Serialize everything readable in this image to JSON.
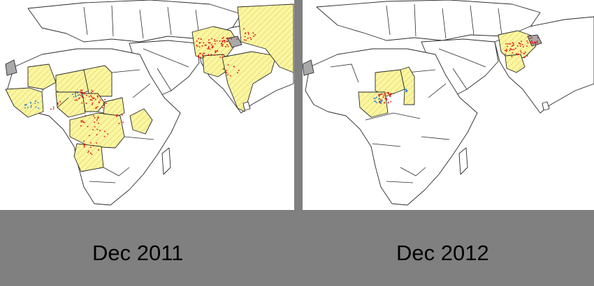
{
  "panels": [
    {
      "caption": "Dec 2011",
      "highlighted_countries": [
        "Mauritania",
        "Mali",
        "Niger",
        "Chad",
        "Guinea",
        "Sierra Leone",
        "Liberia",
        "Cote d'Ivoire",
        "Burkina Faso",
        "Ghana",
        "Togo",
        "Benin",
        "Nigeria",
        "Cameroon",
        "Central African Republic",
        "Congo",
        "Democratic Republic of the Congo",
        "Angola",
        "Ethiopia",
        "Afghanistan",
        "Pakistan",
        "India",
        "Nepal"
      ],
      "case_markers": {
        "colors": [
          "#e01010",
          "#1f7fd6"
        ]
      }
    },
    {
      "caption": "Dec 2012",
      "highlighted_countries": [
        "Niger",
        "Chad",
        "Nigeria",
        "Afghanistan",
        "Pakistan"
      ],
      "case_markers": {
        "colors": [
          "#e01010",
          "#1f7fd6"
        ]
      }
    }
  ],
  "style": {
    "highlight_color": "#fbf6a2",
    "hatch_color": "#e8dd74",
    "disputed_color": "#a9a9a9",
    "background_color": "#808080"
  }
}
